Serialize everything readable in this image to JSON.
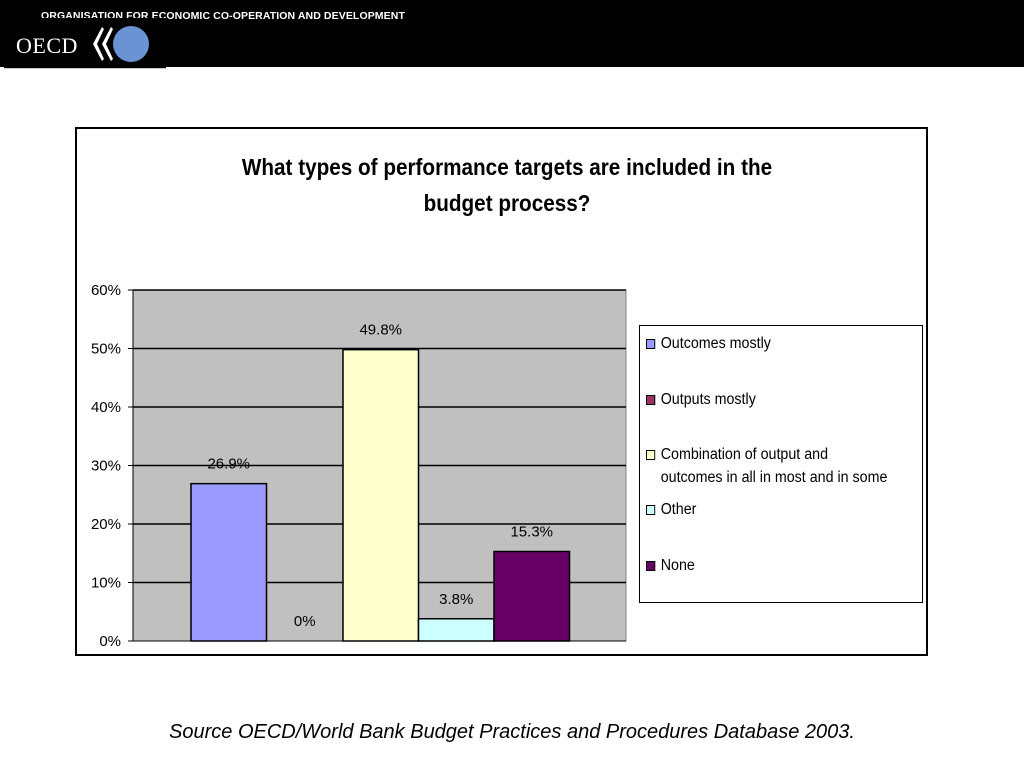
{
  "header": {
    "org_name": "ORGANISATION FOR ECONOMIC CO-OPERATION AND DEVELOPMENT",
    "logo_text": "OECD",
    "logo_circle_color": "#6a93d4"
  },
  "chart_data": {
    "type": "bar",
    "title_line1": "What types of performance targets are included in the",
    "title_line2": "budget process?",
    "categories": [
      "Outcomes mostly",
      "Outputs mostly",
      "Combination of output and outcomes in all in most and in some",
      "Other",
      "None"
    ],
    "values": [
      26.9,
      0,
      49.8,
      3.8,
      15.3
    ],
    "data_labels": [
      "26.9%",
      "0%",
      "49.8%",
      "3.8%",
      "15.3%"
    ],
    "colors": [
      "#9999ff",
      "#993366",
      "#ffffcc",
      "#ccffff",
      "#660066"
    ],
    "ylim": [
      0,
      60
    ],
    "y_ticks": [
      0,
      10,
      20,
      30,
      40,
      50,
      60
    ],
    "y_tick_labels": [
      "0%",
      "10%",
      "20%",
      "30%",
      "40%",
      "50%",
      "60%"
    ],
    "plot_background": "#c0c0c0",
    "grid": true,
    "legend": {
      "position": "right",
      "items": [
        {
          "lines": [
            "Outcomes mostly"
          ],
          "color": "#9999ff"
        },
        {
          "lines": [
            "Outputs mostly"
          ],
          "color": "#993366"
        },
        {
          "lines": [
            "Combination of output and",
            "outcomes in all in most and in some"
          ],
          "color": "#ffffcc"
        },
        {
          "lines": [
            "Other"
          ],
          "color": "#ccffff"
        },
        {
          "lines": [
            "None"
          ],
          "color": "#660066"
        }
      ]
    }
  },
  "footer": {
    "source": "Source OECD/World Bank Budget Practices and Procedures Database 2003."
  }
}
